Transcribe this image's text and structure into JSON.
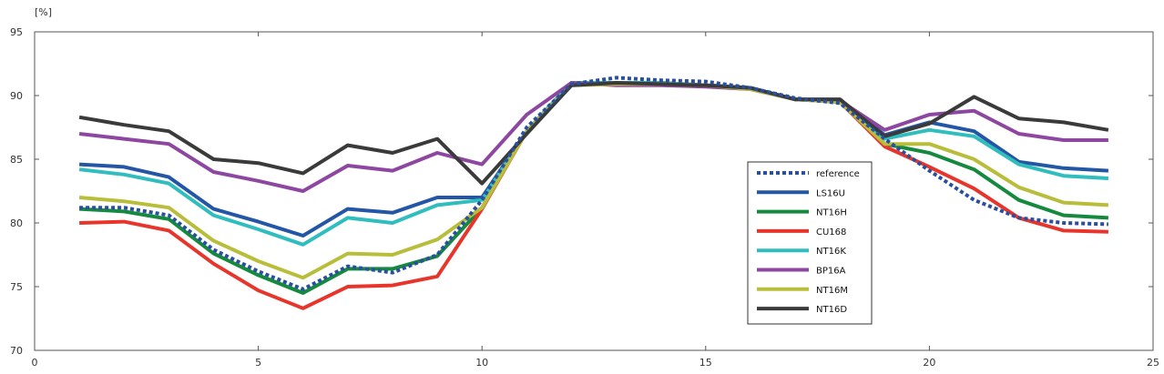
{
  "chart_data": {
    "type": "line",
    "ylabel": "[%]",
    "xlim": [
      0,
      25
    ],
    "ylim": [
      70,
      95
    ],
    "xticks": [
      0,
      5,
      10,
      15,
      20,
      25
    ],
    "yticks": [
      70,
      75,
      80,
      85,
      90,
      95
    ],
    "grid": false,
    "legend_position": "lower-right-of-center",
    "x": [
      1,
      2,
      3,
      4,
      5,
      6,
      7,
      8,
      9,
      10,
      11,
      12,
      13,
      14,
      15,
      16,
      17,
      18,
      19,
      20,
      21,
      22,
      23,
      24
    ],
    "series": [
      {
        "name": "reference",
        "color": "#2a4f9e",
        "style": "dotted",
        "values": [
          81.2,
          81.2,
          80.6,
          77.9,
          76.2,
          74.8,
          76.6,
          76.1,
          77.5,
          81.8,
          87.5,
          90.9,
          91.4,
          91.2,
          91.1,
          90.6,
          89.8,
          89.4,
          86.6,
          84.1,
          81.8,
          80.4,
          80.0,
          79.9
        ]
      },
      {
        "name": "LS16U",
        "color": "#2456a6",
        "style": "solid",
        "values": [
          84.6,
          84.4,
          83.6,
          81.1,
          80.1,
          79.0,
          81.1,
          80.8,
          82.0,
          82.0,
          87.2,
          91.0,
          90.9,
          90.9,
          90.8,
          90.6,
          89.7,
          89.7,
          86.9,
          87.9,
          87.2,
          84.8,
          84.3,
          84.1
        ]
      },
      {
        "name": "NT16H",
        "color": "#158a3e",
        "style": "solid",
        "values": [
          81.1,
          80.9,
          80.3,
          77.6,
          75.9,
          74.5,
          76.4,
          76.4,
          77.4,
          81.2,
          87.2,
          91.0,
          91.0,
          91.0,
          90.8,
          90.6,
          89.7,
          89.5,
          86.2,
          85.5,
          84.2,
          81.8,
          80.6,
          80.4
        ]
      },
      {
        "name": "CU168",
        "color": "#e8352b",
        "style": "solid",
        "values": [
          80.0,
          80.1,
          79.4,
          76.8,
          74.7,
          73.3,
          75.0,
          75.1,
          75.8,
          81.1,
          87.2,
          91.0,
          91.0,
          91.0,
          90.8,
          90.6,
          89.7,
          89.5,
          86.0,
          84.4,
          82.7,
          80.4,
          79.4,
          79.3
        ]
      },
      {
        "name": "NT16K",
        "color": "#2fbdbd",
        "style": "solid",
        "values": [
          84.2,
          83.8,
          83.1,
          80.6,
          79.5,
          78.3,
          80.4,
          80.0,
          81.4,
          81.8,
          87.2,
          91.0,
          91.0,
          91.0,
          90.8,
          90.6,
          89.7,
          89.5,
          86.6,
          87.3,
          86.8,
          84.6,
          83.7,
          83.5
        ]
      },
      {
        "name": "BP16A",
        "color": "#8e47a0",
        "style": "solid",
        "values": [
          87.0,
          86.6,
          86.2,
          84.0,
          83.3,
          82.5,
          84.5,
          84.1,
          85.5,
          84.6,
          88.5,
          91.0,
          90.8,
          90.8,
          90.7,
          90.5,
          89.7,
          89.6,
          87.3,
          88.5,
          88.8,
          87.0,
          86.5,
          86.5
        ]
      },
      {
        "name": "NT16M",
        "color": "#b8bd3a",
        "style": "solid",
        "values": [
          82.0,
          81.7,
          81.2,
          78.6,
          77.0,
          75.7,
          77.6,
          77.5,
          78.7,
          81.2,
          87.2,
          90.8,
          90.9,
          90.9,
          90.8,
          90.5,
          89.7,
          89.5,
          86.2,
          86.2,
          85.0,
          82.8,
          81.6,
          81.4
        ]
      },
      {
        "name": "NT16D",
        "color": "#3a3a3a",
        "style": "solid",
        "values": [
          88.3,
          87.7,
          87.2,
          85.0,
          84.7,
          83.9,
          86.1,
          85.5,
          86.6,
          83.1,
          87.0,
          90.8,
          91.0,
          90.9,
          90.8,
          90.6,
          89.7,
          89.7,
          86.8,
          87.8,
          89.9,
          88.2,
          87.9,
          87.3
        ]
      }
    ]
  }
}
